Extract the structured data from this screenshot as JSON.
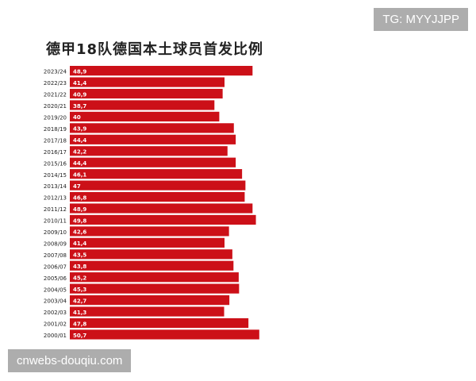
{
  "watermarks": {
    "top_right": "TG: MYYJJPP",
    "bottom_left": "cnwebs-douqiu.com"
  },
  "colors": {
    "bar": "#cc1018",
    "bar_label": "#ffffff",
    "text": "#222222"
  },
  "chart_data": {
    "type": "bar",
    "orientation": "horizontal",
    "title": "德甲18队德国本土球员首发比例",
    "categories": [
      "2023/24",
      "2022/23",
      "2021/22",
      "2020/21",
      "2019/20",
      "2018/19",
      "2017/18",
      "2016/17",
      "2015/16",
      "2014/15",
      "2013/14",
      "2012/13",
      "2011/12",
      "2010/11",
      "2009/10",
      "2008/09",
      "2007/08",
      "2006/07",
      "2005/06",
      "2004/05",
      "2003/04",
      "2002/03",
      "2001/02",
      "2000/01"
    ],
    "values": [
      48.9,
      41.4,
      40.9,
      38.7,
      40,
      43.9,
      44.4,
      42.2,
      44.4,
      46.1,
      47,
      46.8,
      48.9,
      49.8,
      42.6,
      41.4,
      43.5,
      43.8,
      45.2,
      45.3,
      42.7,
      41.3,
      47.8,
      50.7
    ],
    "value_labels": [
      "48,9",
      "41,4",
      "40,9",
      "38,7",
      "40",
      "43,9",
      "44,4",
      "42,2",
      "44,4",
      "46,1",
      "47",
      "46,8",
      "48,9",
      "49,8",
      "42,6",
      "41,4",
      "43,5",
      "43,8",
      "45,2",
      "45,3",
      "42,7",
      "41,3",
      "47,8",
      "50,7"
    ],
    "xlabel": "",
    "ylabel": "",
    "grid": false,
    "legend": "none"
  }
}
